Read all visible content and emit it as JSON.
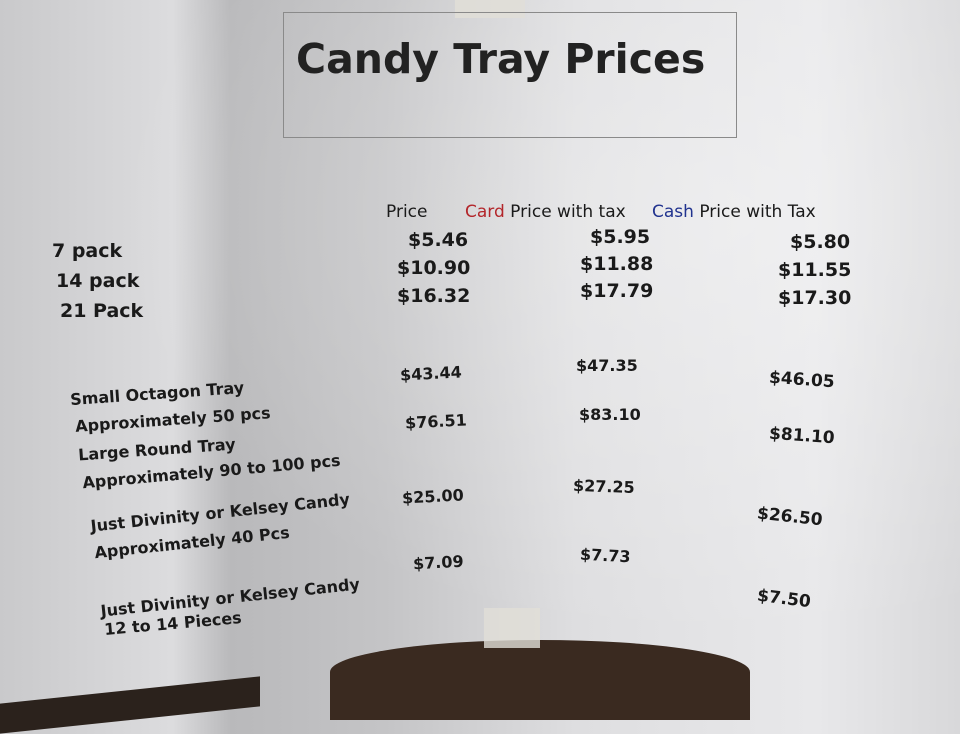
{
  "title": "Candy Tray Prices",
  "headers": {
    "price": "Price",
    "card_word": "Card",
    "card_rest": " Price with tax",
    "cash_word": "Cash",
    "cash_rest": " Price with Tax"
  },
  "colors": {
    "card": "#b3262b",
    "cash": "#21338f"
  },
  "packs": [
    {
      "label": "7 pack",
      "price": "$5.46",
      "card": "$5.95",
      "cash": "$5.80"
    },
    {
      "label": "14 pack",
      "price": "$10.90",
      "card": "$11.88",
      "cash": "$11.55"
    },
    {
      "label": "21 Pack",
      "price": "$16.32",
      "card": "$17.79",
      "cash": "$17.30"
    }
  ],
  "items": [
    {
      "lines": [
        "Small Octagon Tray",
        "Approximately 50 pcs"
      ],
      "price": "$43.44",
      "card": "$47.35",
      "cash": "$46.05"
    },
    {
      "lines": [
        "Large Round Tray",
        "Approximately 90 to 100 pcs"
      ],
      "price": "$76.51",
      "card": "$83.10",
      "cash": "$81.10"
    },
    {
      "lines": [
        "Just Divinity or Kelsey Candy",
        "Approximately 40 Pcs"
      ],
      "price": "$25.00",
      "card": "$27.25",
      "cash": "$26.50"
    },
    {
      "lines": [
        "Just Divinity or Kelsey Candy",
        "12 to 14 Pieces"
      ],
      "price": "$7.09",
      "card": "$7.73",
      "cash": "$7.50"
    }
  ]
}
